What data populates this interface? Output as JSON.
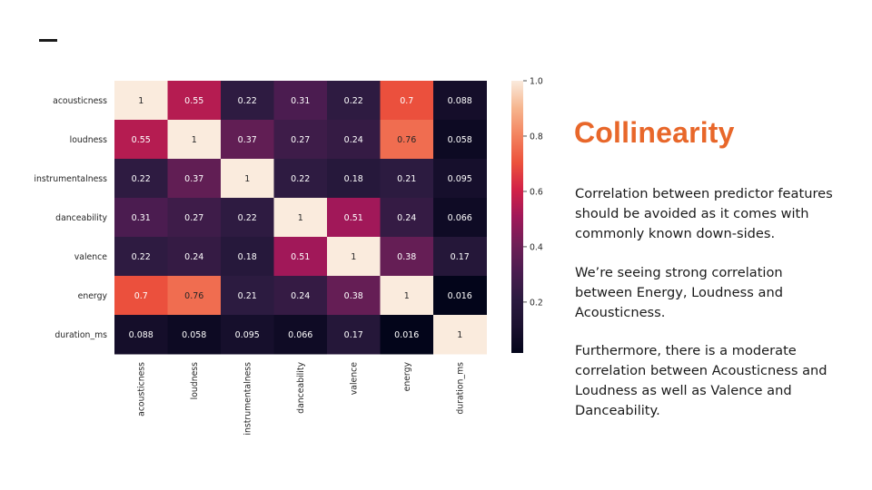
{
  "slide": {
    "title": "Collinearity",
    "paragraphs": [
      "Correlation between predictor features should be avoided as it comes with commonly known down-sides.",
      "We’re seeing strong correlation between Energy, Loudness and Acousticness.",
      "Furthermore, there is a moderate correlation between Acousticness and Loudness as well as Valence and Danceability."
    ]
  },
  "chart_data": {
    "type": "heatmap",
    "title": "",
    "xlabel": "",
    "ylabel": "",
    "row_labels": [
      "acousticness",
      "loudness",
      "instrumentalness",
      "danceability",
      "valence",
      "energy",
      "duration_ms"
    ],
    "col_labels": [
      "acousticness",
      "loudness",
      "instrumentalness",
      "danceability",
      "valence",
      "energy",
      "duration_ms"
    ],
    "values": [
      [
        1,
        0.55,
        0.22,
        0.31,
        0.22,
        0.7,
        0.088
      ],
      [
        0.55,
        1,
        0.37,
        0.27,
        0.24,
        0.76,
        0.058
      ],
      [
        0.22,
        0.37,
        1,
        0.22,
        0.18,
        0.21,
        0.095
      ],
      [
        0.31,
        0.27,
        0.22,
        1,
        0.51,
        0.24,
        0.066
      ],
      [
        0.22,
        0.24,
        0.18,
        0.51,
        1,
        0.38,
        0.17
      ],
      [
        0.7,
        0.76,
        0.21,
        0.24,
        0.38,
        1,
        0.016
      ],
      [
        0.088,
        0.058,
        0.095,
        0.066,
        0.17,
        0.016,
        1
      ]
    ],
    "colorbar": {
      "min": 0.016,
      "max": 1.0,
      "ticks": [
        "1.0",
        "0.8",
        "0.6",
        "0.4",
        "0.2"
      ],
      "tick_values": [
        1.0,
        0.8,
        0.6,
        0.4,
        0.2
      ],
      "colormap": "rocket"
    },
    "colors": {
      "text_light": "#ffffff",
      "text_dark": "#262626",
      "title_accent": "#e8672a"
    }
  }
}
